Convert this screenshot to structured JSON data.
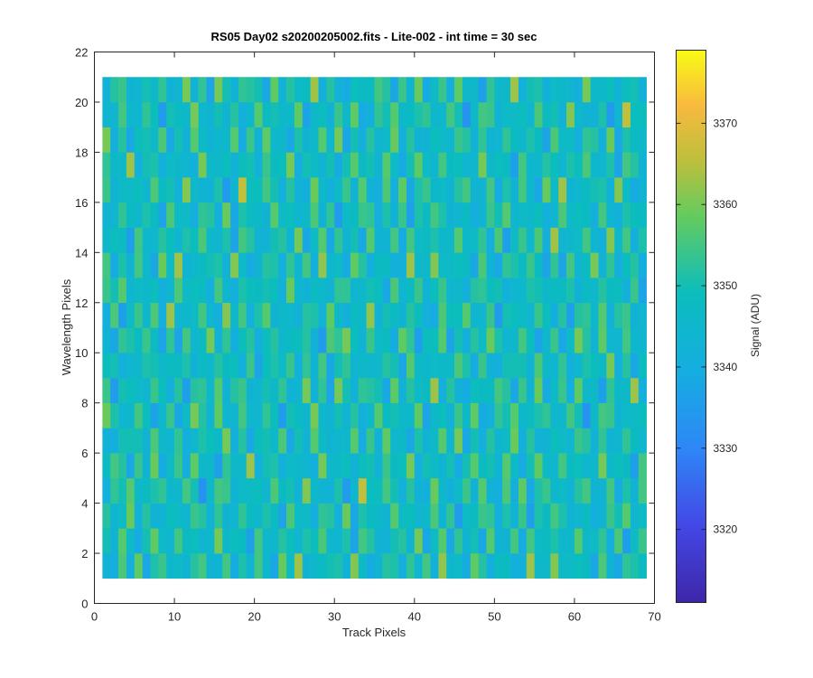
{
  "chart_data": {
    "type": "heatmap",
    "title": "RS05 Day02  s20200205002.fits - Lite-002 - int time = 30 sec",
    "xlabel": "Track Pixels",
    "ylabel": "Wavelength Pixels",
    "xlim": [
      0,
      70
    ],
    "ylim": [
      0,
      22
    ],
    "xticks": [
      0,
      10,
      20,
      30,
      40,
      50,
      60,
      70
    ],
    "yticks": [
      0,
      2,
      4,
      6,
      8,
      10,
      12,
      14,
      16,
      18,
      20,
      22
    ],
    "x_range": [
      1,
      69
    ],
    "y_range": [
      1,
      21
    ],
    "colorbar": {
      "label": "Signal (ADU)",
      "min": 3311,
      "max": 3379,
      "ticks": [
        3320,
        3330,
        3340,
        3350,
        3360,
        3370
      ],
      "colormap": "parula"
    },
    "grid": false,
    "values_note_hex_colors": "#3e26a8,#2e87f7,#0bbdbd,#64cb5e,#f8ba3e,#f9fb15",
    "rows": [
      [
        3346,
        3340,
        3352,
        3341,
        3355,
        3340,
        3349,
        3357,
        3344,
        3351,
        3343,
        3348,
        3356,
        3340,
        3345,
        3353,
        3342,
        3350,
        3347,
        3355,
        3341,
        3339,
        3356,
        3349,
        3361,
        3346,
        3344,
        3352,
        3350,
        3347,
        3343,
        3358,
        3349,
        3337,
        3346,
        3351,
        3355,
        3340,
        3349,
        3345,
        3352,
        3343,
        3360,
        3348,
        3346,
        3343,
        3358,
        3348,
        3341,
        3345,
        3350,
        3339,
        3344,
        3362,
        3350,
        3346,
        3357,
        3348,
        3344,
        3351,
        3346,
        3341,
        3355,
        3347,
        3338,
        3349,
        3352,
        3345,
        3356
      ],
      [
        3350,
        3342,
        3354,
        3339,
        3346,
        3358,
        3345,
        3352,
        3341,
        3360,
        3346,
        3343,
        3350,
        3354,
        3348,
        3341,
        3357,
        3346,
        3352,
        3343,
        3349,
        3360,
        3342,
        3350,
        3345,
        3338,
        3353,
        3348,
        3344,
        3356,
        3349,
        3340,
        3352,
        3346,
        3358,
        3343,
        3347,
        3350,
        3341,
        3355,
        3348,
        3344,
        3339,
        3352,
        3350,
        3346,
        3359,
        3342,
        3347,
        3353,
        3339,
        3350,
        3345,
        3348,
        3341,
        3356,
        3347,
        3343,
        3351,
        3340,
        3352,
        3349,
        3346,
        3354,
        3344,
        3350,
        3357,
        3342,
        3348
      ],
      [
        3344,
        3356,
        3348,
        3345,
        3342,
        3351,
        3339,
        3347,
        3354,
        3346,
        3358,
        3341,
        3349,
        3344,
        3352,
        3340,
        3348,
        3356,
        3343,
        3350,
        3345,
        3342,
        3353,
        3347,
        3340,
        3355,
        3349,
        3344,
        3351,
        3346,
        3343,
        3357,
        3348,
        3341,
        3352,
        3345,
        3339,
        3354,
        3350,
        3346,
        3344,
        3353,
        3348,
        3342,
        3356,
        3340,
        3349,
        3351,
        3345,
        3347,
        3357,
        3343,
        3350,
        3341,
        3348,
        3354,
        3346,
        3352,
        3339,
        3347,
        3344,
        3355,
        3350,
        3342,
        3349,
        3345,
        3353,
        3340,
        3351
      ]
    ]
  }
}
